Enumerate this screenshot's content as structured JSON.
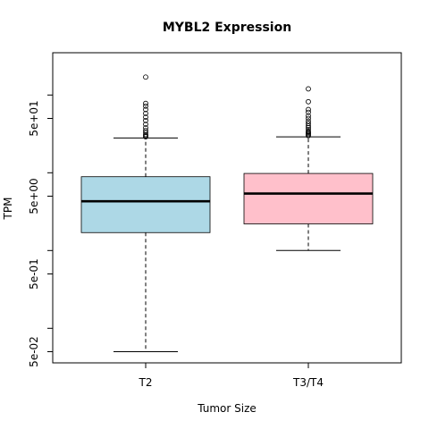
{
  "chart_data": {
    "type": "box",
    "title": "MYBL2 Expression",
    "xlabel": "Tumor Size",
    "ylabel": "TPM",
    "y_scale": "log10",
    "y_ticks": [
      {
        "value": 0.05,
        "label": "5e-02"
      },
      {
        "value": 0.5,
        "label": "5e-01"
      },
      {
        "value": 5,
        "label": "5e+00"
      },
      {
        "value": 50,
        "label": "5e+01"
      }
    ],
    "y_minor_ticks": [
      0.1,
      1,
      10,
      100
    ],
    "ylim": [
      0.04,
      200
    ],
    "grid": false,
    "categories": [
      "T2",
      "T3/T4"
    ],
    "colors": [
      "#ADD8E6",
      "#FFC0CB"
    ],
    "boxes": [
      {
        "category": "T2",
        "whisker_low": 0.05,
        "q1": 1.7,
        "median": 4.3,
        "q3": 8.9,
        "whisker_high": 28,
        "outliers": [
          170,
          78,
          72,
          65,
          58,
          52,
          47,
          42,
          38,
          35,
          33,
          31,
          30,
          29
        ]
      },
      {
        "category": "T3/T4",
        "whisker_low": 1.0,
        "q1": 2.2,
        "median": 5.4,
        "q3": 9.8,
        "whisker_high": 29,
        "outliers": [
          120,
          82,
          65,
          60,
          54,
          50,
          46,
          43,
          40,
          38,
          36,
          34,
          33,
          32,
          31,
          30
        ]
      }
    ]
  }
}
